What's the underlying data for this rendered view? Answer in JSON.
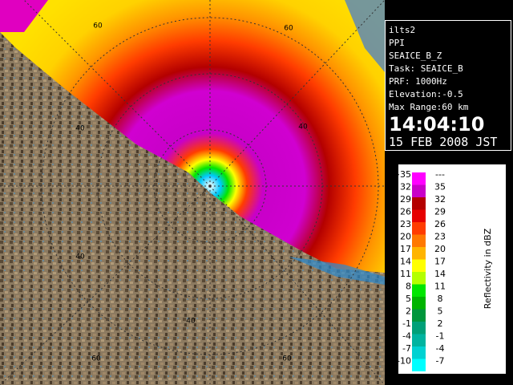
{
  "info": {
    "lines": [
      "ilts2",
      "PPI",
      "SEAICE_B_Z",
      "Task: SEAICE_B",
      "PRF: 1000Hz",
      "Elevation:-0.5",
      "Max Range:60 km"
    ],
    "time": "14:04:10",
    "date": "15 FEB 2008 JST"
  },
  "range_labels": [
    "60",
    "60",
    "40",
    "40",
    "40",
    "40",
    "60",
    "60"
  ],
  "legend": {
    "title": "Reflectivity in dBZ",
    "rows": [
      {
        "low": ">35",
        "high": "---",
        "color": "#ff00ff"
      },
      {
        "low": "32",
        "high": "35",
        "color": "#c800c8"
      },
      {
        "low": "29",
        "high": "32",
        "color": "#b40000"
      },
      {
        "low": "26",
        "high": "29",
        "color": "#e60000"
      },
      {
        "low": "23",
        "high": "26",
        "color": "#ff3c00"
      },
      {
        "low": "20",
        "high": "23",
        "color": "#ff7800"
      },
      {
        "low": "17",
        "high": "20",
        "color": "#ffb400"
      },
      {
        "low": "14",
        "high": "17",
        "color": "#ffff00"
      },
      {
        "low": "11",
        "high": "14",
        "color": "#b4ff00"
      },
      {
        "low": "8",
        "high": "11",
        "color": "#00e600"
      },
      {
        "low": "5",
        "high": "8",
        "color": "#00b400"
      },
      {
        "low": "2",
        "high": "5",
        "color": "#00963c"
      },
      {
        "low": "-1",
        "high": "2",
        "color": "#00a078"
      },
      {
        "low": "-4",
        "high": "-1",
        "color": "#00b4a0"
      },
      {
        "low": "-7",
        "high": "-4",
        "color": "#00d2d2"
      },
      {
        "low": "-10",
        "high": "-7",
        "color": "#00ffff"
      }
    ]
  }
}
